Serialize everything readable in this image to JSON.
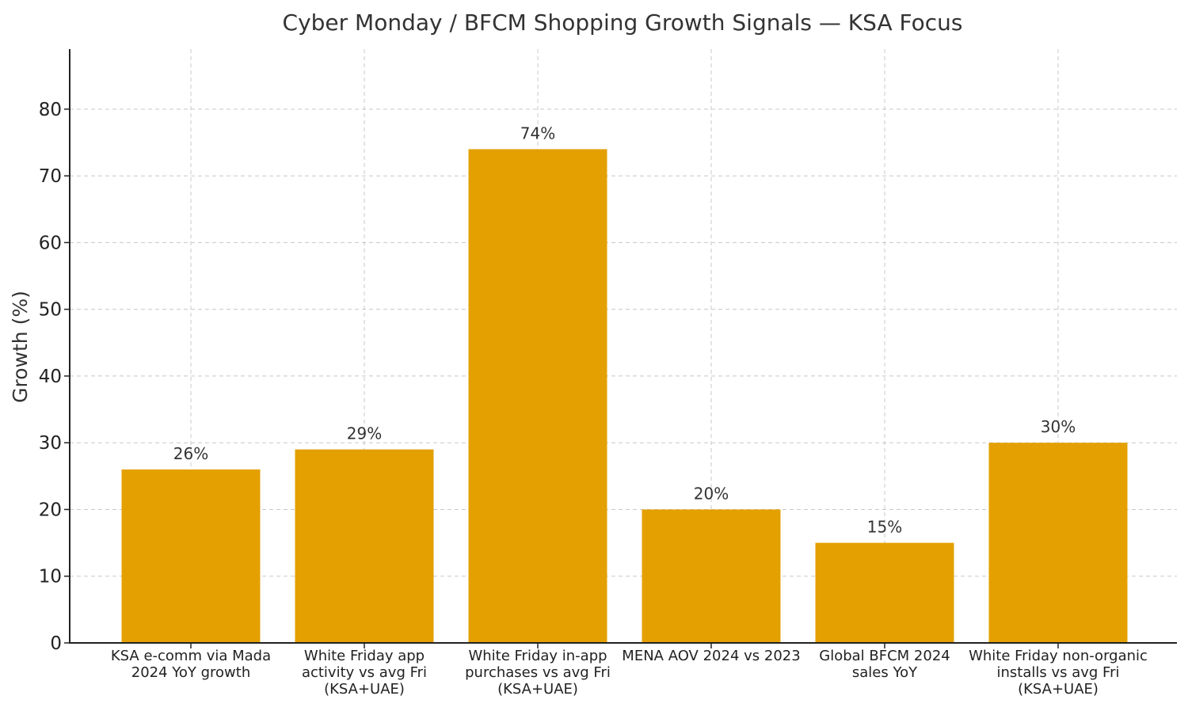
{
  "chart_data": {
    "type": "bar",
    "title": "Cyber Monday / BFCM Shopping Growth Signals — KSA Focus",
    "xlabel": "",
    "ylabel": "Growth (%)",
    "ylim": [
      0,
      89
    ],
    "yticks": [
      0,
      10,
      20,
      30,
      40,
      50,
      60,
      70,
      80
    ],
    "grid": true,
    "bar_color": "#E3A000",
    "categories": [
      [
        "KSA e-comm via Mada",
        "2024 YoY growth"
      ],
      [
        "White Friday app",
        "activity vs avg Fri",
        "(KSA+UAE)"
      ],
      [
        "White Friday in-app",
        "purchases vs avg Fri",
        "(KSA+UAE)"
      ],
      [
        "MENA AOV 2024 vs 2023"
      ],
      [
        "Global BFCM 2024",
        "sales YoY"
      ],
      [
        "White Friday non-organic",
        "installs vs avg Fri",
        "(KSA+UAE)"
      ]
    ],
    "values": [
      26,
      29,
      74,
      20,
      15,
      30
    ],
    "data_labels": [
      "26%",
      "29%",
      "74%",
      "20%",
      "15%",
      "30%"
    ]
  }
}
